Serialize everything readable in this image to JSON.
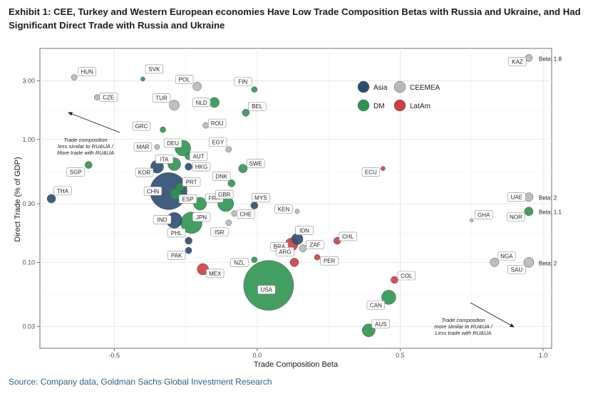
{
  "title": "Exhibit 1: CEE, Turkey and Western European economies Have Low Trade Composition Betas with Russia and Ukraine, and Had Significant Direct Trade with Russia and Ukraine",
  "source": "Source: Company data, Goldman Sachs Global Investment Research",
  "colors": {
    "Asia": "#2b4c72",
    "DM": "#2e9550",
    "CEEMEA": "#b8b8b8",
    "LatAm": "#cf3d3f"
  },
  "chart_data": {
    "type": "scatter",
    "xlabel": "Trade Composition Beta",
    "ylabel": "Direct Trade (% of GDP)",
    "x_ticks": [
      -0.5,
      0.0,
      0.5,
      1.0
    ],
    "x_tick_labels": [
      "-0.5",
      "0.0",
      "0.5",
      "1.0"
    ],
    "y_ticks": [
      0.03,
      0.1,
      0.3,
      1.0,
      3.0
    ],
    "y_tick_labels": [
      "0.03",
      "0.10",
      "0.30",
      "1.00",
      "3.00"
    ],
    "xlim": [
      -0.76,
      1.03
    ],
    "ylim": [
      0.02,
      5.5
    ],
    "y_scale": "log",
    "grid": true,
    "legend": {
      "position": "top-right",
      "entries": [
        "Asia",
        "DM",
        "CEEMEA",
        "LatAm"
      ]
    },
    "size_encoding": "bubble size varies",
    "annotations": [
      {
        "lines": [
          "Trade composition",
          "less similar to RU&UA /",
          "More trade with RU&UA"
        ],
        "arrow": "up-left"
      },
      {
        "lines": [
          "Trade composition",
          "more similar to RU&UA /",
          "Less trade with RU&UA"
        ],
        "arrow": "down-right"
      }
    ],
    "points": [
      {
        "label": "HUN",
        "x": -0.64,
        "y": 3.2,
        "group": "CEEMEA",
        "size": 4
      },
      {
        "label": "SVK",
        "x": -0.4,
        "y": 3.1,
        "group": "DM",
        "size": 3
      },
      {
        "label": "CZE",
        "x": -0.56,
        "y": 2.2,
        "group": "CEEMEA",
        "size": 4
      },
      {
        "label": "POL",
        "x": -0.21,
        "y": 2.7,
        "group": "CEEMEA",
        "size": 6
      },
      {
        "label": "TUR",
        "x": -0.29,
        "y": 1.9,
        "group": "CEEMEA",
        "size": 7
      },
      {
        "label": "NLD",
        "x": -0.15,
        "y": 2.0,
        "group": "DM",
        "size": 7
      },
      {
        "label": "FIN",
        "x": -0.01,
        "y": 2.55,
        "group": "DM",
        "size": 4
      },
      {
        "label": "BEL",
        "x": -0.04,
        "y": 1.65,
        "group": "DM",
        "size": 5
      },
      {
        "label": "ROU",
        "x": -0.18,
        "y": 1.3,
        "group": "CEEMEA",
        "size": 4
      },
      {
        "label": "GRC",
        "x": -0.33,
        "y": 1.2,
        "group": "DM",
        "size": 4
      },
      {
        "label": "DEU",
        "x": -0.26,
        "y": 0.85,
        "group": "DM",
        "size": 11
      },
      {
        "label": "MAR",
        "x": -0.35,
        "y": 0.87,
        "group": "CEEMEA",
        "size": 3.5
      },
      {
        "label": "EGY",
        "x": -0.1,
        "y": 0.83,
        "group": "CEEMEA",
        "size": 4
      },
      {
        "label": "AUT",
        "x": -0.24,
        "y": 0.73,
        "group": "DM",
        "size": 5
      },
      {
        "label": "ITA",
        "x": -0.29,
        "y": 0.63,
        "group": "DM",
        "size": 9
      },
      {
        "label": "HKG",
        "x": -0.24,
        "y": 0.6,
        "group": "Asia",
        "size": 5
      },
      {
        "label": "SWE",
        "x": -0.05,
        "y": 0.58,
        "group": "DM",
        "size": 6
      },
      {
        "label": "SGP",
        "x": -0.59,
        "y": 0.62,
        "group": "DM",
        "size": 5
      },
      {
        "label": "KOR",
        "x": -0.35,
        "y": 0.6,
        "group": "Asia",
        "size": 9
      },
      {
        "label": "DNK",
        "x": -0.09,
        "y": 0.44,
        "group": "DM",
        "size": 5
      },
      {
        "label": "PRT",
        "x": -0.27,
        "y": 0.41,
        "group": "DM",
        "size": 6
      },
      {
        "label": "CHN",
        "x": -0.31,
        "y": 0.38,
        "group": "Asia",
        "size": 26
      },
      {
        "label": "ESP",
        "x": -0.285,
        "y": 0.36,
        "group": "DM",
        "size": 8
      },
      {
        "label": "FRA",
        "x": -0.2,
        "y": 0.3,
        "group": "DM",
        "size": 9
      },
      {
        "label": "GBR",
        "x": -0.11,
        "y": 0.3,
        "group": "DM",
        "size": 11
      },
      {
        "label": "MYS",
        "x": -0.01,
        "y": 0.29,
        "group": "Asia",
        "size": 5
      },
      {
        "label": "THA",
        "x": -0.72,
        "y": 0.33,
        "group": "Asia",
        "size": 6
      },
      {
        "label": "KEN",
        "x": 0.14,
        "y": 0.26,
        "group": "CEEMEA",
        "size": 3
      },
      {
        "label": "CHE",
        "x": -0.08,
        "y": 0.25,
        "group": "CEEMEA",
        "size": 4
      },
      {
        "label": "ISR",
        "x": -0.1,
        "y": 0.21,
        "group": "CEEMEA",
        "size": 4
      },
      {
        "label": "IND",
        "x": -0.29,
        "y": 0.22,
        "group": "Asia",
        "size": 11
      },
      {
        "label": "JPN",
        "x": -0.23,
        "y": 0.21,
        "group": "DM",
        "size": 15
      },
      {
        "label": "PHL",
        "x": -0.24,
        "y": 0.15,
        "group": "Asia",
        "size": 5
      },
      {
        "label": "PAK",
        "x": -0.24,
        "y": 0.125,
        "group": "Asia",
        "size": 4.5
      },
      {
        "label": "IDN",
        "x": 0.14,
        "y": 0.155,
        "group": "Asia",
        "size": 8
      },
      {
        "label": "BRA",
        "x": 0.12,
        "y": 0.14,
        "group": "LatAm",
        "size": 9
      },
      {
        "label": "ZAF",
        "x": 0.16,
        "y": 0.13,
        "group": "CEEMEA",
        "size": 5
      },
      {
        "label": "CHL",
        "x": 0.28,
        "y": 0.15,
        "group": "LatAm",
        "size": 5
      },
      {
        "label": "PER",
        "x": 0.21,
        "y": 0.11,
        "group": "LatAm",
        "size": 4
      },
      {
        "label": "NZL",
        "x": -0.01,
        "y": 0.105,
        "group": "DM",
        "size": 4
      },
      {
        "label": "ARG",
        "x": 0.13,
        "y": 0.1,
        "group": "LatAm",
        "size": 6
      },
      {
        "label": "MEX",
        "x": -0.19,
        "y": 0.088,
        "group": "LatAm",
        "size": 8
      },
      {
        "label": "USA",
        "x": 0.04,
        "y": 0.065,
        "group": "DM",
        "size": 35
      },
      {
        "label": "COL",
        "x": 0.48,
        "y": 0.072,
        "group": "LatAm",
        "size": 5
      },
      {
        "label": "CAN",
        "x": 0.46,
        "y": 0.052,
        "group": "DM",
        "size": 10
      },
      {
        "label": "AUS",
        "x": 0.39,
        "y": 0.028,
        "group": "DM",
        "size": 9
      },
      {
        "label": "ECU",
        "x": 0.44,
        "y": 0.58,
        "group": "LatAm",
        "size": 3
      },
      {
        "label": "GHA",
        "x": 0.75,
        "y": 0.22,
        "group": "CEEMEA",
        "size": 2.5
      },
      {
        "label": "KAZ",
        "x": 0.95,
        "y": 4.6,
        "group": "CEEMEA",
        "size": 5,
        "beta_note": "Beta: 1.8"
      },
      {
        "label": "UAE",
        "x": 0.95,
        "y": 0.34,
        "group": "CEEMEA",
        "size": 6,
        "beta_note": "Beta: 2"
      },
      {
        "label": "NOR",
        "x": 0.95,
        "y": 0.26,
        "group": "DM",
        "size": 6,
        "beta_note": "Beta: 1.1"
      },
      {
        "label": "NGA",
        "x": 0.83,
        "y": 0.1,
        "group": "CEEMEA",
        "size": 6
      },
      {
        "label": "SAU",
        "x": 0.95,
        "y": 0.1,
        "group": "CEEMEA",
        "size": 7,
        "beta_note": "Beta: 2"
      }
    ]
  }
}
